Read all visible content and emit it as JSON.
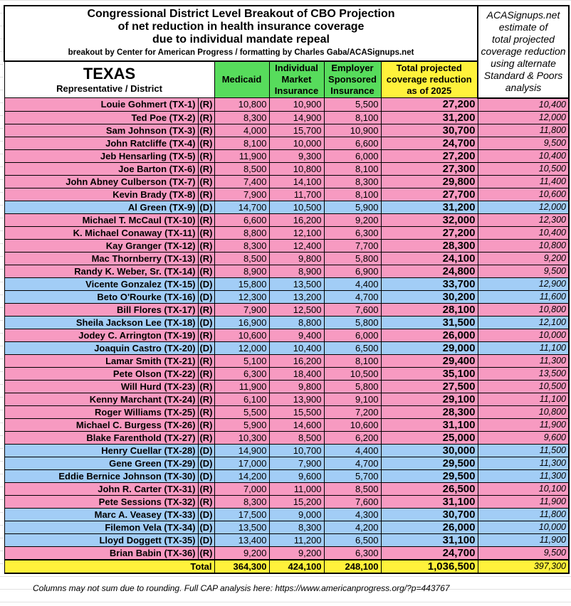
{
  "title": {
    "line1": "Congressional District Level Breakout of CBO Projection",
    "line2": "of net reduction in health insurance coverage",
    "line3": "due to individual mandate repeal",
    "credit": "breakout by Center for American Progress / formatting by Charles Gaba/ACASignups.net"
  },
  "alt_header": [
    "ACASignups.net",
    "estimate of",
    "total projected",
    "coverage reduction",
    "using alternate",
    "Standard & Poors",
    "analysis"
  ],
  "state": "TEXAS",
  "state_sub": "Representative / District",
  "columns": {
    "medicaid": "Medicaid",
    "individual": [
      "Individual",
      "Market",
      "Insurance"
    ],
    "employer": [
      "Employer",
      "Sponsored",
      "Insurance"
    ],
    "total": [
      "Total projected",
      "coverage reduction",
      "as of 2025"
    ]
  },
  "colors": {
    "republican": "#f79ac1",
    "democrat": "#a2cdf6",
    "header_green": "#57dc5c",
    "highlight_yellow": "#fff23b"
  },
  "rows": [
    [
      "Louie Gohmert (TX-1)",
      "(R)",
      "10,800",
      "10,900",
      "5,500",
      "27,200",
      "10,400"
    ],
    [
      "Ted Poe (TX-2)",
      "(R)",
      "8,300",
      "14,900",
      "8,100",
      "31,200",
      "12,000"
    ],
    [
      "Sam Johnson (TX-3)",
      "(R)",
      "4,000",
      "15,700",
      "10,900",
      "30,700",
      "11,800"
    ],
    [
      "John Ratcliffe (TX-4)",
      "(R)",
      "8,100",
      "10,000",
      "6,600",
      "24,700",
      "9,500"
    ],
    [
      "Jeb Hensarling (TX-5)",
      "(R)",
      "11,900",
      "9,300",
      "6,000",
      "27,200",
      "10,400"
    ],
    [
      "Joe Barton (TX-6)",
      "(R)",
      "8,500",
      "10,800",
      "8,100",
      "27,300",
      "10,500"
    ],
    [
      "John Abney Culberson (TX-7)",
      "(R)",
      "7,400",
      "14,100",
      "8,300",
      "29,800",
      "11,400"
    ],
    [
      "Kevin Brady (TX-8)",
      "(R)",
      "7,900",
      "11,700",
      "8,100",
      "27,700",
      "10,600"
    ],
    [
      "Al Green (TX-9)",
      "(D)",
      "14,700",
      "10,500",
      "5,900",
      "31,200",
      "12,000"
    ],
    [
      "Michael T. McCaul (TX-10)",
      "(R)",
      "6,600",
      "16,200",
      "9,200",
      "32,000",
      "12,300"
    ],
    [
      "K. Michael Conaway (TX-11)",
      "(R)",
      "8,800",
      "12,100",
      "6,300",
      "27,200",
      "10,400"
    ],
    [
      "Kay Granger (TX-12)",
      "(R)",
      "8,300",
      "12,400",
      "7,700",
      "28,300",
      "10,800"
    ],
    [
      "Mac Thornberry (TX-13)",
      "(R)",
      "8,500",
      "9,800",
      "5,800",
      "24,100",
      "9,200"
    ],
    [
      "Randy K. Weber, Sr. (TX-14)",
      "(R)",
      "8,900",
      "8,900",
      "6,900",
      "24,800",
      "9,500"
    ],
    [
      "Vicente Gonzalez (TX-15)",
      "(D)",
      "15,800",
      "13,500",
      "4,400",
      "33,700",
      "12,900"
    ],
    [
      "Beto O'Rourke (TX-16)",
      "(D)",
      "12,300",
      "13,200",
      "4,700",
      "30,200",
      "11,600"
    ],
    [
      "Bill Flores (TX-17)",
      "(R)",
      "7,900",
      "12,500",
      "7,600",
      "28,100",
      "10,800"
    ],
    [
      "Sheila Jackson Lee (TX-18)",
      "(D)",
      "16,900",
      "8,800",
      "5,800",
      "31,500",
      "12,100"
    ],
    [
      "Jodey C. Arrington (TX-19)",
      "(R)",
      "10,600",
      "9,400",
      "6,000",
      "26,000",
      "10,000"
    ],
    [
      "Joaquin Castro (TX-20)",
      "(D)",
      "12,000",
      "10,400",
      "6,500",
      "29,000",
      "11,100"
    ],
    [
      "Lamar Smith (TX-21)",
      "(R)",
      "5,100",
      "16,200",
      "8,100",
      "29,400",
      "11,300"
    ],
    [
      "Pete Olson (TX-22)",
      "(R)",
      "6,300",
      "18,400",
      "10,500",
      "35,100",
      "13,500"
    ],
    [
      "Will Hurd (TX-23)",
      "(R)",
      "11,900",
      "9,800",
      "5,800",
      "27,500",
      "10,500"
    ],
    [
      "Kenny Marchant (TX-24)",
      "(R)",
      "6,100",
      "13,900",
      "9,100",
      "29,100",
      "11,100"
    ],
    [
      "Roger Williams (TX-25)",
      "(R)",
      "5,500",
      "15,500",
      "7,200",
      "28,300",
      "10,800"
    ],
    [
      "Michael C. Burgess (TX-26)",
      "(R)",
      "5,900",
      "14,600",
      "10,600",
      "31,100",
      "11,900"
    ],
    [
      "Blake Farenthold (TX-27)",
      "(R)",
      "10,300",
      "8,500",
      "6,200",
      "25,000",
      "9,600"
    ],
    [
      "Henry Cuellar (TX-28)",
      "(D)",
      "14,900",
      "10,700",
      "4,400",
      "30,000",
      "11,500"
    ],
    [
      "Gene Green (TX-29)",
      "(D)",
      "17,000",
      "7,900",
      "4,700",
      "29,500",
      "11,300"
    ],
    [
      "Eddie Bernice Johnson (TX-30)",
      "(D)",
      "14,200",
      "9,600",
      "5,700",
      "29,500",
      "11,300"
    ],
    [
      "John R. Carter (TX-31)",
      "(R)",
      "7,000",
      "11,000",
      "8,500",
      "26,500",
      "10,100"
    ],
    [
      "Pete Sessions (TX-32)",
      "(R)",
      "8,300",
      "15,200",
      "7,600",
      "31,100",
      "11,900"
    ],
    [
      "Marc A. Veasey (TX-33)",
      "(D)",
      "17,500",
      "9,000",
      "4,300",
      "30,700",
      "11,800"
    ],
    [
      "Filemon Vela (TX-34)",
      "(D)",
      "13,500",
      "8,300",
      "4,200",
      "26,000",
      "10,000"
    ],
    [
      "Lloyd Doggett (TX-35)",
      "(D)",
      "13,400",
      "11,200",
      "6,500",
      "31,100",
      "11,900"
    ],
    [
      "Brian Babin (TX-36)",
      "(R)",
      "9,200",
      "9,200",
      "6,300",
      "24,700",
      "9,500"
    ]
  ],
  "totals": {
    "label": "Total",
    "medicaid": "364,300",
    "individual": "424,100",
    "employer": "248,100",
    "total": "1,036,500",
    "alt": "397,300"
  },
  "footnote": "Columns may not sum due to rounding. Full CAP analysis here: https://www.americanprogress.org/?p=443767"
}
